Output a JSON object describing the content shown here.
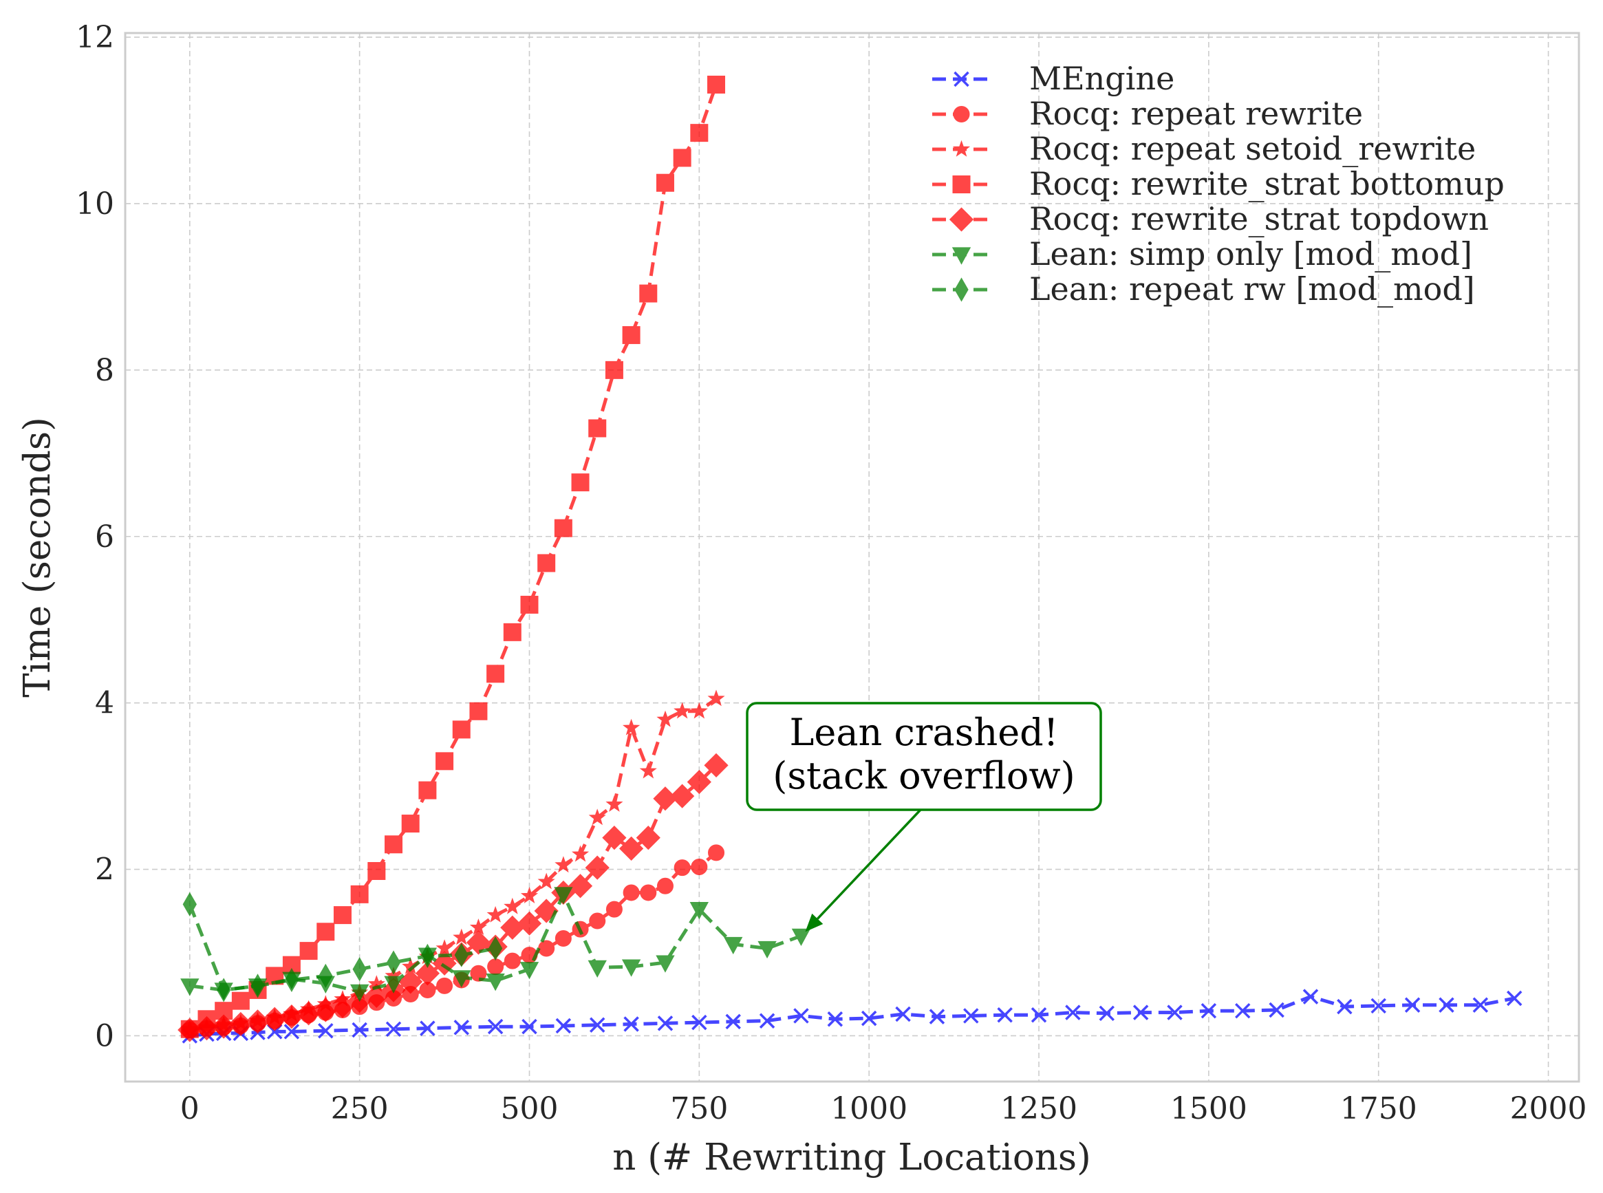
{
  "chart_data": {
    "type": "line",
    "title": "",
    "xlabel": "n (# Rewriting Locations)",
    "ylabel": "Time (seconds)",
    "xlim": [
      -95,
      2045
    ],
    "ylim": [
      -0.55,
      12.05
    ],
    "x_ticks": [
      0,
      250,
      500,
      750,
      1000,
      1250,
      1500,
      1750,
      2000
    ],
    "y_ticks": [
      0,
      2,
      4,
      6,
      8,
      10,
      12
    ],
    "grid": true,
    "legend_position": "upper right",
    "series": [
      {
        "name": "MEngine",
        "color": "#0000ff",
        "marker": "x",
        "x": [
          0,
          25,
          50,
          75,
          100,
          125,
          150,
          200,
          250,
          300,
          350,
          400,
          450,
          500,
          550,
          600,
          650,
          700,
          750,
          800,
          850,
          900,
          950,
          1000,
          1050,
          1100,
          1150,
          1200,
          1250,
          1300,
          1350,
          1400,
          1450,
          1500,
          1550,
          1600,
          1650,
          1700,
          1750,
          1800,
          1850,
          1900,
          1950
        ],
        "y": [
          0.0,
          0.02,
          0.03,
          0.03,
          0.04,
          0.05,
          0.05,
          0.06,
          0.07,
          0.08,
          0.09,
          0.1,
          0.11,
          0.11,
          0.12,
          0.13,
          0.14,
          0.15,
          0.16,
          0.17,
          0.18,
          0.24,
          0.2,
          0.21,
          0.26,
          0.23,
          0.24,
          0.25,
          0.25,
          0.28,
          0.27,
          0.28,
          0.28,
          0.3,
          0.3,
          0.31,
          0.47,
          0.35,
          0.36,
          0.37,
          0.37,
          0.37,
          0.45
        ]
      },
      {
        "name": "Rocq: repeat rewrite",
        "color": "#ff0000",
        "marker": "o",
        "x": [
          0,
          25,
          50,
          75,
          100,
          125,
          150,
          175,
          200,
          225,
          250,
          275,
          300,
          325,
          350,
          375,
          400,
          425,
          450,
          475,
          500,
          525,
          550,
          575,
          600,
          625,
          650,
          675,
          700,
          725,
          750,
          775
        ],
        "y": [
          0.07,
          0.09,
          0.1,
          0.12,
          0.15,
          0.18,
          0.22,
          0.25,
          0.28,
          0.31,
          0.35,
          0.4,
          0.45,
          0.5,
          0.55,
          0.6,
          0.67,
          0.75,
          0.83,
          0.9,
          0.97,
          1.05,
          1.17,
          1.28,
          1.38,
          1.52,
          1.72,
          1.72,
          1.8,
          2.02,
          2.03,
          2.2
        ]
      },
      {
        "name": "Rocq: repeat setoid_rewrite",
        "color": "#ff0000",
        "marker": "*",
        "x": [
          0,
          25,
          50,
          75,
          100,
          125,
          150,
          175,
          200,
          225,
          250,
          275,
          300,
          325,
          350,
          375,
          400,
          425,
          450,
          475,
          500,
          525,
          550,
          575,
          600,
          625,
          650,
          675,
          700,
          725,
          750,
          775
        ],
        "y": [
          0.08,
          0.1,
          0.13,
          0.15,
          0.18,
          0.22,
          0.26,
          0.32,
          0.38,
          0.44,
          0.52,
          0.62,
          0.72,
          0.83,
          0.95,
          1.05,
          1.18,
          1.3,
          1.45,
          1.55,
          1.68,
          1.85,
          2.05,
          2.18,
          2.62,
          2.78,
          3.7,
          3.18,
          3.8,
          3.9,
          3.9,
          4.05
        ]
      },
      {
        "name": "Rocq: rewrite_strat bottomup",
        "color": "#ff0000",
        "marker": "s",
        "x": [
          0,
          25,
          50,
          75,
          100,
          125,
          150,
          175,
          200,
          225,
          250,
          275,
          300,
          325,
          350,
          375,
          400,
          425,
          450,
          475,
          500,
          525,
          550,
          575,
          600,
          625,
          650,
          675,
          700,
          725,
          750,
          775
        ],
        "y": [
          0.08,
          0.2,
          0.3,
          0.42,
          0.55,
          0.72,
          0.85,
          1.02,
          1.25,
          1.45,
          1.7,
          1.98,
          2.3,
          2.55,
          2.95,
          3.3,
          3.68,
          3.9,
          4.35,
          4.85,
          5.18,
          5.68,
          6.1,
          6.65,
          7.3,
          8.0,
          8.42,
          8.92,
          10.25,
          10.55,
          10.85,
          11.43
        ]
      },
      {
        "name": "Rocq: rewrite_strat topdown",
        "color": "#ff0000",
        "marker": "D",
        "x": [
          0,
          25,
          50,
          75,
          100,
          125,
          150,
          175,
          200,
          225,
          250,
          275,
          300,
          325,
          350,
          375,
          400,
          425,
          450,
          475,
          500,
          525,
          550,
          575,
          600,
          625,
          650,
          675,
          700,
          725,
          750,
          775
        ],
        "y": [
          0.07,
          0.09,
          0.11,
          0.14,
          0.17,
          0.2,
          0.23,
          0.27,
          0.31,
          0.36,
          0.42,
          0.48,
          0.55,
          0.65,
          0.75,
          0.87,
          0.98,
          1.12,
          1.07,
          1.3,
          1.35,
          1.5,
          1.72,
          1.8,
          2.02,
          2.38,
          2.25,
          2.38,
          2.85,
          2.88,
          3.05,
          3.25
        ]
      },
      {
        "name": "Lean: simp only [mod_mod]",
        "color": "#008000",
        "marker": "v",
        "x": [
          0,
          50,
          100,
          150,
          200,
          250,
          300,
          350,
          400,
          450,
          500,
          550,
          600,
          650,
          700,
          750,
          800,
          850,
          900
        ],
        "y": [
          0.6,
          0.55,
          0.6,
          0.68,
          0.63,
          0.53,
          0.63,
          0.97,
          0.7,
          0.66,
          0.8,
          1.7,
          0.82,
          0.83,
          0.88,
          1.52,
          1.1,
          1.05,
          1.2
        ]
      },
      {
        "name": "Lean: repeat rw [mod_mod]",
        "color": "#008000",
        "marker": "d",
        "x": [
          0,
          50,
          100,
          150,
          200,
          250,
          300,
          350,
          400,
          450
        ],
        "y": [
          1.58,
          0.55,
          0.6,
          0.67,
          0.72,
          0.8,
          0.88,
          0.96,
          0.97,
          1.05
        ]
      }
    ],
    "annotation": {
      "text_line1": "Lean crashed!",
      "text_line2": "(stack overflow)",
      "points_to": [
        900,
        1.2
      ],
      "color": "#008000"
    }
  }
}
